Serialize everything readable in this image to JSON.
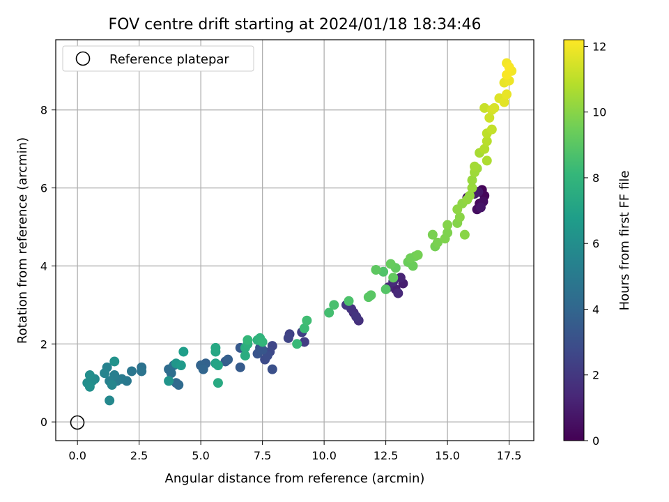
{
  "chart_data": {
    "type": "scatter",
    "title": "FOV centre drift starting at 2024/01/18 18:34:46",
    "xlabel": "Angular distance from reference (arcmin)",
    "ylabel": "Rotation from reference (arcmin)",
    "xlim": [
      -0.88,
      18.5
    ],
    "ylim": [
      -0.48,
      9.8
    ],
    "xticks": [
      "0.0",
      "2.5",
      "5.0",
      "7.5",
      "10.0",
      "12.5",
      "15.0",
      "17.5"
    ],
    "xtick_values": [
      0,
      2.5,
      5,
      7.5,
      10,
      12.5,
      15,
      17.5
    ],
    "yticks": [
      "0",
      "2",
      "4",
      "6",
      "8"
    ],
    "ytick_values": [
      0,
      2,
      4,
      6,
      8
    ],
    "grid": true,
    "legend": {
      "position": "top-left",
      "entries": [
        "Reference platepar"
      ]
    },
    "reference_point": {
      "x": 0,
      "y": 0,
      "label": "Reference platepar"
    },
    "colorbar": {
      "label": "Hours from first FF file",
      "range": [
        0,
        12.2
      ],
      "ticks": [
        "0",
        "2",
        "4",
        "6",
        "8",
        "10",
        "12"
      ],
      "tick_values": [
        0,
        2,
        4,
        6,
        8,
        10,
        12
      ],
      "colormap": "viridis",
      "colormap_stops": [
        "#440154",
        "#482878",
        "#3e4989",
        "#31688e",
        "#26828e",
        "#1f9e89",
        "#35b779",
        "#6ece58",
        "#b5de2b",
        "#fde725"
      ]
    },
    "series": [
      {
        "points": [
          [
            16.4,
            5.95,
            0.1
          ],
          [
            16.5,
            5.8,
            0.2
          ],
          [
            16.3,
            5.6,
            0.3
          ],
          [
            16.2,
            5.45,
            0.4
          ],
          [
            16.45,
            5.65,
            0.5
          ],
          [
            15.8,
            5.75,
            0.6
          ],
          [
            16.35,
            5.5,
            0.7
          ],
          [
            16.25,
            5.9,
            0.8
          ],
          [
            16.1,
            5.85,
            0.9
          ],
          [
            13.2,
            3.55,
            1.0
          ],
          [
            12.9,
            3.4,
            1.1
          ],
          [
            13.1,
            3.7,
            1.2
          ],
          [
            12.6,
            3.45,
            1.3
          ],
          [
            13.0,
            3.3,
            1.4
          ],
          [
            12.8,
            3.6,
            1.5
          ],
          [
            11.2,
            2.8,
            1.6
          ],
          [
            11.4,
            2.6,
            1.7
          ],
          [
            11.1,
            2.9,
            1.8
          ],
          [
            11.3,
            2.7,
            1.9
          ],
          [
            10.9,
            3.0,
            2.0
          ],
          [
            9.2,
            2.05,
            2.2
          ],
          [
            9.1,
            2.3,
            2.3
          ],
          [
            8.6,
            2.25,
            2.4
          ],
          [
            8.55,
            2.15,
            2.5
          ],
          [
            7.9,
            1.95,
            2.6
          ],
          [
            7.8,
            1.8,
            2.7
          ],
          [
            7.6,
            1.6,
            2.8
          ],
          [
            7.7,
            1.7,
            2.9
          ],
          [
            7.9,
            1.35,
            3.0
          ],
          [
            7.4,
            1.9,
            3.1
          ],
          [
            7.3,
            1.75,
            3.2
          ],
          [
            7.5,
            1.85,
            3.3
          ],
          [
            6.6,
            1.9,
            3.4
          ],
          [
            6.6,
            1.4,
            3.5
          ],
          [
            6.0,
            1.55,
            3.6
          ],
          [
            6.1,
            1.6,
            3.7
          ],
          [
            5.2,
            1.5,
            3.8
          ],
          [
            5.0,
            1.45,
            3.9
          ],
          [
            5.1,
            1.35,
            4.0
          ],
          [
            4.0,
            1.0,
            4.1
          ],
          [
            4.1,
            0.95,
            4.2
          ],
          [
            3.7,
            1.35,
            4.3
          ],
          [
            3.8,
            1.25,
            4.4
          ],
          [
            3.9,
            1.45,
            4.5
          ],
          [
            2.6,
            1.4,
            4.6
          ],
          [
            2.6,
            1.3,
            4.7
          ],
          [
            2.2,
            1.3,
            4.8
          ],
          [
            2.0,
            1.05,
            4.9
          ],
          [
            1.8,
            1.1,
            5.0
          ],
          [
            1.6,
            1.05,
            5.1
          ],
          [
            1.5,
            1.2,
            5.2
          ],
          [
            1.3,
            1.05,
            5.3
          ],
          [
            1.2,
            1.4,
            5.4
          ],
          [
            1.1,
            1.25,
            5.5
          ],
          [
            1.4,
            0.95,
            5.6
          ],
          [
            1.3,
            0.55,
            5.7
          ],
          [
            0.7,
            1.1,
            5.8
          ],
          [
            0.6,
            1.05,
            5.9
          ],
          [
            0.4,
            1.0,
            6.0
          ],
          [
            0.5,
            1.2,
            6.0
          ],
          [
            0.5,
            0.9,
            6.1
          ],
          [
            1.5,
            1.55,
            6.2
          ],
          [
            3.7,
            1.05,
            6.3
          ],
          [
            4.0,
            1.5,
            6.4
          ],
          [
            4.2,
            1.45,
            6.6
          ],
          [
            4.3,
            1.8,
            6.8
          ],
          [
            5.6,
            1.5,
            7.0
          ],
          [
            5.7,
            1.45,
            7.1
          ],
          [
            5.6,
            1.8,
            7.2
          ],
          [
            5.6,
            1.9,
            7.3
          ],
          [
            5.7,
            1.0,
            7.4
          ],
          [
            6.8,
            1.7,
            7.5
          ],
          [
            6.8,
            1.9,
            7.6
          ],
          [
            6.9,
            2.0,
            7.7
          ],
          [
            7.3,
            2.1,
            7.8
          ],
          [
            7.4,
            2.15,
            7.9
          ],
          [
            7.5,
            2.05,
            8.0
          ],
          [
            6.9,
            2.1,
            8.1
          ],
          [
            8.9,
            2.0,
            8.2
          ],
          [
            9.2,
            2.4,
            8.3
          ],
          [
            9.3,
            2.6,
            8.4
          ],
          [
            10.2,
            2.8,
            8.5
          ],
          [
            10.4,
            3.0,
            8.6
          ],
          [
            11.0,
            3.1,
            8.7
          ],
          [
            12.4,
            3.85,
            8.8
          ],
          [
            12.5,
            3.4,
            8.9
          ],
          [
            11.8,
            3.2,
            9.0
          ],
          [
            11.9,
            3.25,
            9.0
          ],
          [
            12.1,
            3.9,
            9.1
          ],
          [
            12.8,
            3.7,
            9.2
          ],
          [
            12.9,
            3.95,
            9.2
          ],
          [
            12.7,
            4.05,
            9.3
          ],
          [
            13.4,
            4.1,
            9.4
          ],
          [
            13.6,
            4.0,
            9.4
          ],
          [
            13.5,
            4.2,
            9.5
          ],
          [
            13.7,
            4.25,
            9.5
          ],
          [
            13.8,
            4.28,
            9.6
          ],
          [
            14.5,
            4.5,
            9.6
          ],
          [
            14.6,
            4.6,
            9.7
          ],
          [
            14.4,
            4.8,
            9.7
          ],
          [
            14.9,
            4.7,
            9.8
          ],
          [
            15.0,
            4.85,
            9.8
          ],
          [
            15.0,
            5.05,
            9.9
          ],
          [
            15.4,
            5.1,
            9.9
          ],
          [
            15.5,
            5.25,
            10.0
          ],
          [
            15.7,
            4.8,
            10.0
          ],
          [
            15.4,
            5.45,
            10.1
          ],
          [
            15.6,
            5.6,
            10.1
          ],
          [
            15.8,
            5.7,
            10.2
          ],
          [
            15.9,
            5.8,
            10.2
          ],
          [
            16.0,
            6.0,
            10.3
          ],
          [
            16.0,
            6.2,
            10.3
          ],
          [
            16.1,
            6.4,
            10.4
          ],
          [
            16.2,
            6.5,
            10.4
          ],
          [
            16.1,
            6.55,
            10.5
          ],
          [
            16.3,
            6.9,
            10.6
          ],
          [
            16.6,
            6.7,
            10.7
          ],
          [
            16.5,
            7.0,
            10.8
          ],
          [
            16.6,
            7.2,
            10.9
          ],
          [
            16.6,
            7.4,
            11.0
          ],
          [
            16.8,
            7.5,
            11.1
          ],
          [
            16.5,
            8.05,
            11.2
          ],
          [
            16.7,
            7.8,
            11.3
          ],
          [
            16.8,
            8.0,
            11.4
          ],
          [
            16.9,
            8.05,
            11.5
          ],
          [
            17.1,
            8.3,
            11.6
          ],
          [
            17.3,
            8.2,
            11.7
          ],
          [
            17.4,
            8.4,
            11.8
          ],
          [
            17.3,
            8.7,
            11.8
          ],
          [
            17.5,
            8.75,
            11.9
          ],
          [
            17.6,
            9.0,
            12.0
          ],
          [
            17.4,
            9.2,
            12.0
          ],
          [
            17.5,
            9.1,
            12.1
          ],
          [
            17.4,
            8.9,
            12.1
          ]
        ]
      }
    ]
  }
}
